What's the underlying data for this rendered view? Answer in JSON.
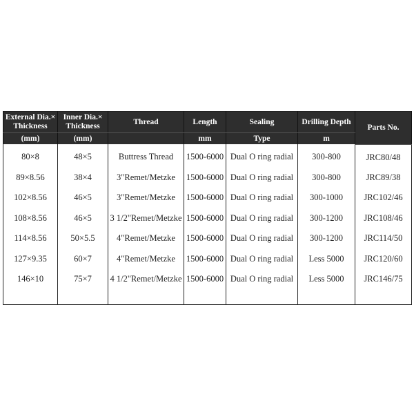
{
  "header": {
    "row1": [
      "External Dia.× Thickness",
      "Inner Dia.× Thickness",
      "Thread",
      "Length",
      "Sealing",
      "Drilling Depth",
      "Parts No."
    ],
    "row2": [
      "(mm)",
      "(mm)",
      "",
      "mm",
      "Type",
      "m"
    ]
  },
  "rows": [
    [
      "80×8",
      "48×5",
      "Buttress Thread",
      "1500-6000",
      "Dual O ring radial",
      "300-800",
      "JRC80/48"
    ],
    [
      "89×8.56",
      "38×4",
      "3\"Remet/Metzke",
      "1500-6000",
      "Dual O ring radial",
      "300-800",
      "JRC89/38"
    ],
    [
      "102×8.56",
      "46×5",
      "3\"Remet/Metzke",
      "1500-6000",
      "Dual O ring radial",
      "300-1000",
      "JRC102/46"
    ],
    [
      "108×8.56",
      "46×5",
      "3 1/2\"Remet/Metzke",
      "1500-6000",
      "Dual O ring radial",
      "300-1200",
      "JRC108/46"
    ],
    [
      "114×8.56",
      "50×5.5",
      "4\"Remet/Metzke",
      "1500-6000",
      "Dual O ring radial",
      "300-1200",
      "JRC114/50"
    ],
    [
      "127×9.35",
      "60×7",
      "4\"Remet/Metzke",
      "1500-6000",
      "Dual O ring radial",
      "Less 5000",
      "JRC120/60"
    ],
    [
      "146×10",
      "75×7",
      "4 1/2\"Remet/Metzke",
      "1500-6000",
      "Dual O ring radial",
      "Less 5000",
      "JRC146/75"
    ]
  ]
}
